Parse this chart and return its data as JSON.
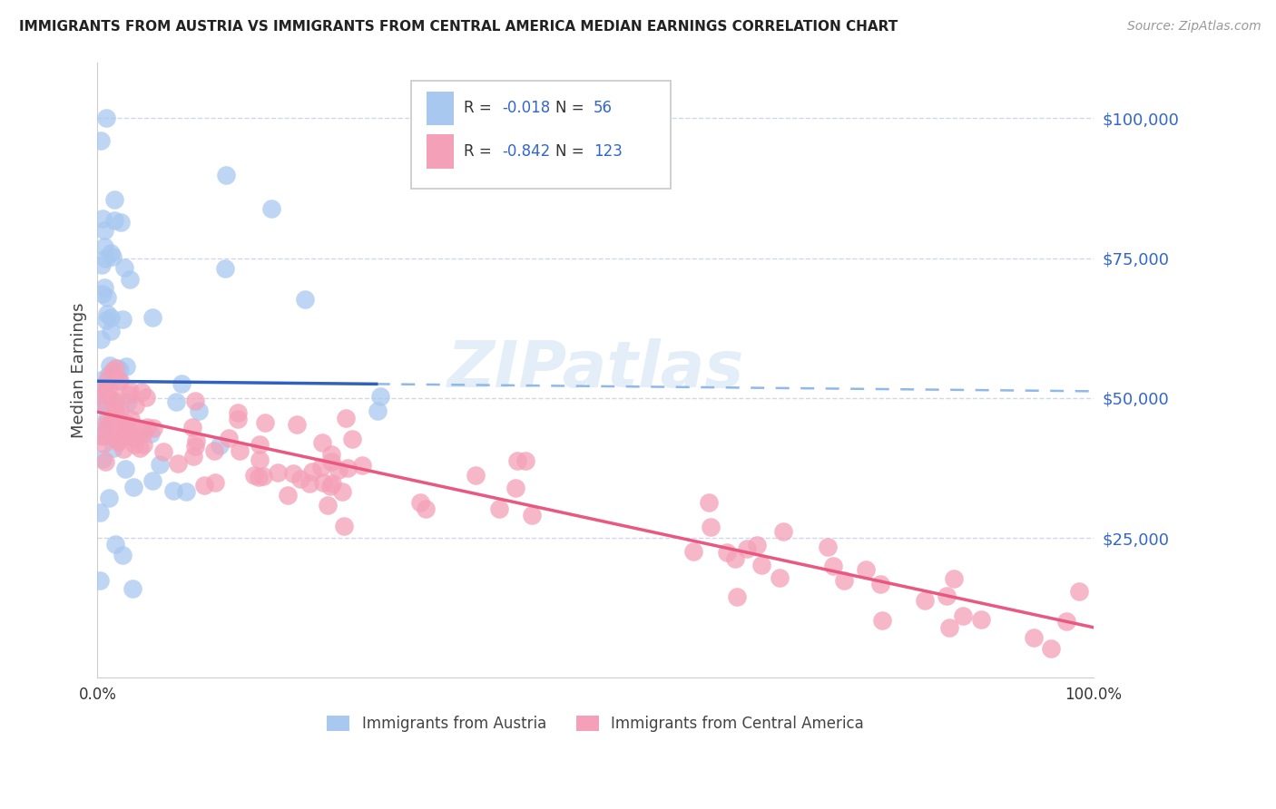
{
  "title": "IMMIGRANTS FROM AUSTRIA VS IMMIGRANTS FROM CENTRAL AMERICA MEDIAN EARNINGS CORRELATION CHART",
  "source": "Source: ZipAtlas.com",
  "ylabel": "Median Earnings",
  "ytick_values": [
    25000,
    50000,
    75000,
    100000
  ],
  "ytick_labels": [
    "$25,000",
    "$50,000",
    "$75,000",
    "$100,000"
  ],
  "ylim": [
    0,
    110000
  ],
  "xlim": [
    0,
    1.0
  ],
  "legend_austria_R": "-0.018",
  "legend_austria_N": "56",
  "legend_central_R": "-0.842",
  "legend_central_N": "123",
  "color_austria": "#a8c8f0",
  "color_central": "#f4a0b8",
  "color_austria_line_solid": "#3060c0",
  "color_austria_line_dash": "#90b8e8",
  "color_central_line": "#e85880",
  "watermark": "ZIPatlas",
  "background_color": "#ffffff",
  "grid_color": "#d0d8e8"
}
